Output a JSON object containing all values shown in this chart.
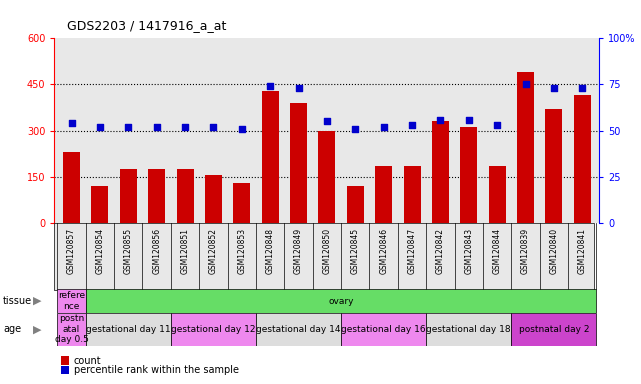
{
  "title": "GDS2203 / 1417916_a_at",
  "samples": [
    "GSM120857",
    "GSM120854",
    "GSM120855",
    "GSM120856",
    "GSM120851",
    "GSM120852",
    "GSM120853",
    "GSM120848",
    "GSM120849",
    "GSM120850",
    "GSM120845",
    "GSM120846",
    "GSM120847",
    "GSM120842",
    "GSM120843",
    "GSM120844",
    "GSM120839",
    "GSM120840",
    "GSM120841"
  ],
  "counts": [
    230,
    120,
    175,
    175,
    175,
    155,
    130,
    430,
    390,
    300,
    120,
    185,
    185,
    330,
    310,
    185,
    490,
    370,
    415
  ],
  "percentiles": [
    54,
    52,
    52,
    52,
    52,
    52,
    51,
    74,
    73,
    55,
    51,
    52,
    53,
    56,
    56,
    53,
    75,
    73,
    73
  ],
  "ylim_left": [
    0,
    600
  ],
  "ylim_right": [
    0,
    100
  ],
  "yticks_left": [
    0,
    150,
    300,
    450,
    600
  ],
  "yticks_right": [
    0,
    25,
    50,
    75,
    100
  ],
  "bar_color": "#cc0000",
  "square_color": "#0000cc",
  "bg_color": "#e8e8e8",
  "tissue_groups": [
    {
      "label": "refere\nnce",
      "start": 0,
      "end": 1,
      "color": "#ee88ee"
    },
    {
      "label": "ovary",
      "start": 1,
      "end": 19,
      "color": "#66dd66"
    }
  ],
  "age_groups": [
    {
      "label": "postn\natal\nday 0.5",
      "start": 0,
      "end": 1,
      "color": "#ee88ee"
    },
    {
      "label": "gestational day 11",
      "start": 1,
      "end": 4,
      "color": "#dddddd"
    },
    {
      "label": "gestational day 12",
      "start": 4,
      "end": 7,
      "color": "#ee88ee"
    },
    {
      "label": "gestational day 14",
      "start": 7,
      "end": 10,
      "color": "#dddddd"
    },
    {
      "label": "gestational day 16",
      "start": 10,
      "end": 13,
      "color": "#ee88ee"
    },
    {
      "label": "gestational day 18",
      "start": 13,
      "end": 16,
      "color": "#dddddd"
    },
    {
      "label": "postnatal day 2",
      "start": 16,
      "end": 19,
      "color": "#cc44cc"
    }
  ]
}
